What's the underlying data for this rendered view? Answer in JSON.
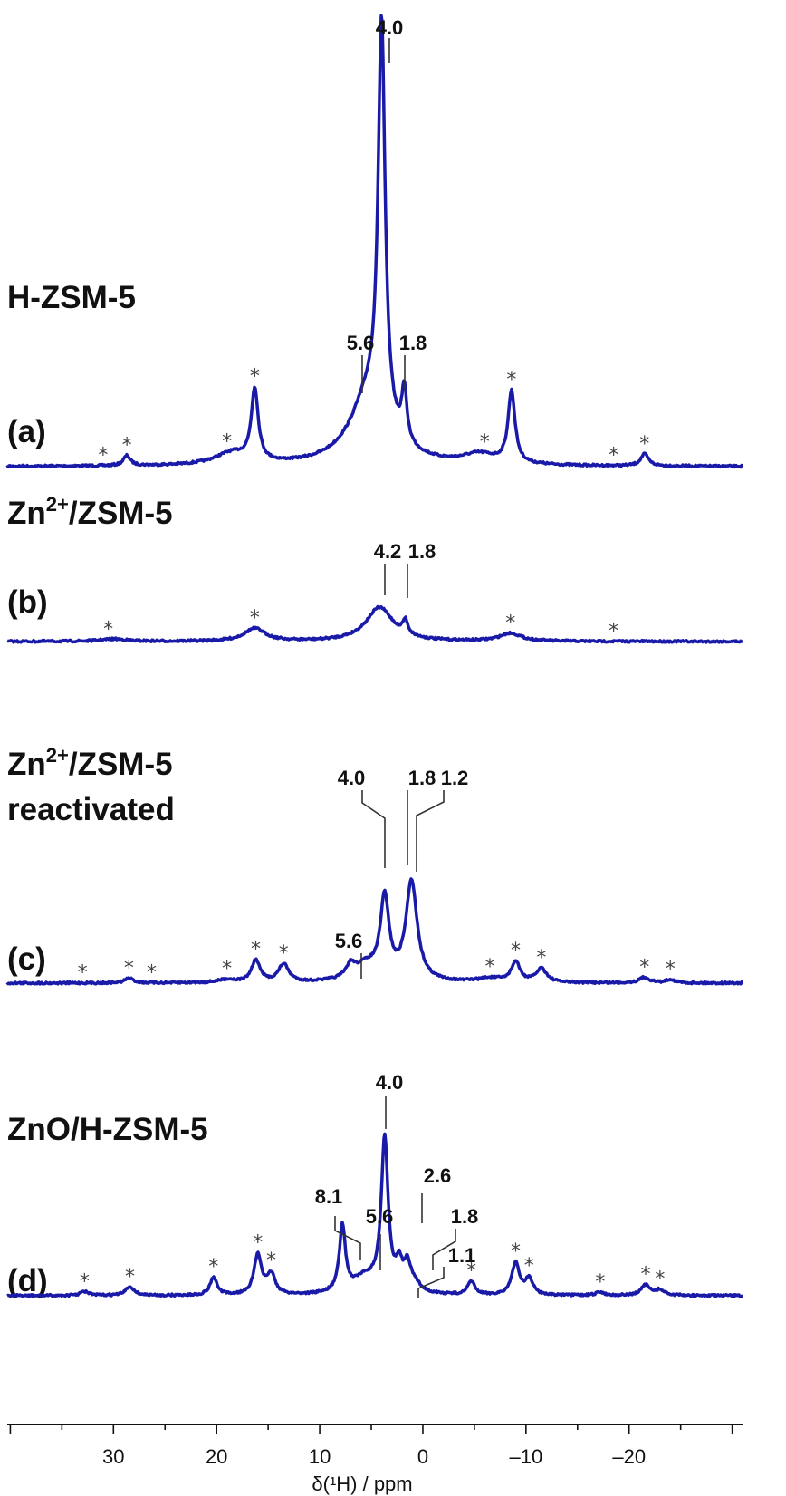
{
  "chart_data": {
    "type": "line",
    "xlabel": "δ(¹H) / ppm",
    "xlim": [
      40.3,
      -31
    ],
    "x_reversed": true,
    "xticks": [
      30,
      20,
      10,
      0,
      -10,
      -20
    ],
    "xtick_labels": [
      "30",
      "20",
      "10",
      "0",
      "–10",
      "–20"
    ],
    "grid": false,
    "line_color": "#1a1aa8",
    "series": [
      {
        "id": "a",
        "panel_label": "(a)",
        "sample": "H-ZSM-5",
        "sample_line2": "",
        "peaks": [
          {
            "ppm": 4.0,
            "height": 100,
            "fwhm": 0.8
          },
          {
            "ppm": 5.2,
            "height": 17,
            "fwhm": 4.5
          },
          {
            "ppm": 1.8,
            "height": 13,
            "fwhm": 0.6
          },
          {
            "ppm": 16.3,
            "height": 18,
            "fwhm": 0.8
          },
          {
            "ppm": -8.6,
            "height": 18,
            "fwhm": 0.8
          },
          {
            "ppm": 28.7,
            "height": 2.5,
            "fwhm": 0.8
          },
          {
            "ppm": 18.5,
            "height": 3,
            "fwhm": 4
          },
          {
            "ppm": -5.5,
            "height": 2.5,
            "fwhm": 4
          },
          {
            "ppm": -21.5,
            "height": 3,
            "fwhm": 0.9
          }
        ],
        "sidebands_ppm": [
          31,
          28.7,
          19,
          16.3,
          -6,
          -8.6,
          -18.5,
          -21.5
        ],
        "annotations": [
          "4.0",
          "5.6",
          "1.8"
        ]
      },
      {
        "id": "b",
        "panel_label": "(b)",
        "sample": "Zn",
        "sample_sup": "2+",
        "sample_rest": "/ZSM-5",
        "peaks": [
          {
            "ppm": 4.2,
            "height": 8.5,
            "fwhm": 3.2
          },
          {
            "ppm": 1.7,
            "height": 3.5,
            "fwhm": 0.6
          },
          {
            "ppm": 16.3,
            "height": 3.2,
            "fwhm": 2.5
          },
          {
            "ppm": -8.5,
            "height": 2,
            "fwhm": 2.5
          },
          {
            "ppm": 30,
            "height": 0.6,
            "fwhm": 3
          }
        ],
        "sidebands_ppm": [
          30.5,
          16.3,
          -8.5,
          -18.5
        ],
        "annotations": [
          "4.2",
          "1.8"
        ]
      },
      {
        "id": "c",
        "panel_label": "(c)",
        "sample": "Zn",
        "sample_sup": "2+",
        "sample_rest": "/ZSM-5",
        "sample_line2": "reactivated",
        "peaks": [
          {
            "ppm": 3.7,
            "height": 20,
            "fwhm": 1.0
          },
          {
            "ppm": 1.1,
            "height": 25,
            "fwhm": 1.3
          },
          {
            "ppm": 5.5,
            "height": 4,
            "fwhm": 3
          },
          {
            "ppm": 7.0,
            "height": 3,
            "fwhm": 1
          },
          {
            "ppm": 16.2,
            "height": 5.5,
            "fwhm": 1
          },
          {
            "ppm": 13.5,
            "height": 4.5,
            "fwhm": 1.2
          },
          {
            "ppm": -9.0,
            "height": 5,
            "fwhm": 1
          },
          {
            "ppm": -11.5,
            "height": 3.5,
            "fwhm": 1.2
          },
          {
            "ppm": 28.5,
            "height": 1.2,
            "fwhm": 1
          },
          {
            "ppm": -21.5,
            "height": 1.4,
            "fwhm": 1.2
          },
          {
            "ppm": -24,
            "height": 0.9,
            "fwhm": 1
          },
          {
            "ppm": 19,
            "height": 0.8,
            "fwhm": 2
          },
          {
            "ppm": -6.5,
            "height": 1,
            "fwhm": 3
          }
        ],
        "sidebands_ppm": [
          33,
          28.5,
          26.3,
          19,
          16.2,
          13.5,
          -6.5,
          -9.0,
          -11.5,
          -21.5,
          -24
        ],
        "annotations": [
          "4.0",
          "1.8",
          "1.2",
          "5.6"
        ]
      },
      {
        "id": "d",
        "panel_label": "(d)",
        "sample": "ZnO/H-ZSM-5",
        "sample_line2": "",
        "peaks": [
          {
            "ppm": 3.7,
            "height": 38,
            "fwhm": 0.8
          },
          {
            "ppm": 7.8,
            "height": 16.5,
            "fwhm": 0.7
          },
          {
            "ppm": 5.6,
            "height": 4,
            "fwhm": 3
          },
          {
            "ppm": 2.3,
            "height": 6,
            "fwhm": 0.8
          },
          {
            "ppm": 1.5,
            "height": 6,
            "fwhm": 0.8
          },
          {
            "ppm": 0.8,
            "height": 2,
            "fwhm": 1.5
          },
          {
            "ppm": 16.0,
            "height": 10,
            "fwhm": 0.9
          },
          {
            "ppm": 14.7,
            "height": 5,
            "fwhm": 0.9
          },
          {
            "ppm": 20.3,
            "height": 4.5,
            "fwhm": 0.8
          },
          {
            "ppm": 28.4,
            "height": 2.2,
            "fwhm": 1
          },
          {
            "ppm": 32.8,
            "height": 1,
            "fwhm": 1
          },
          {
            "ppm": -4.7,
            "height": 3.4,
            "fwhm": 0.8
          },
          {
            "ppm": -9.0,
            "height": 8,
            "fwhm": 0.9
          },
          {
            "ppm": -10.3,
            "height": 4,
            "fwhm": 0.9
          },
          {
            "ppm": -17.2,
            "height": 0.8,
            "fwhm": 1
          },
          {
            "ppm": -21.6,
            "height": 2.6,
            "fwhm": 1
          },
          {
            "ppm": -23,
            "height": 1.4,
            "fwhm": 1
          }
        ],
        "sidebands_ppm": [
          32.8,
          28.4,
          20.3,
          16.0,
          14.7,
          -4.7,
          -9.0,
          -10.3,
          -17.2,
          -21.6,
          -23
        ],
        "annotations": [
          "4.0",
          "8.1",
          "5.6",
          "2.6",
          "1.8",
          "1.1"
        ]
      }
    ]
  }
}
